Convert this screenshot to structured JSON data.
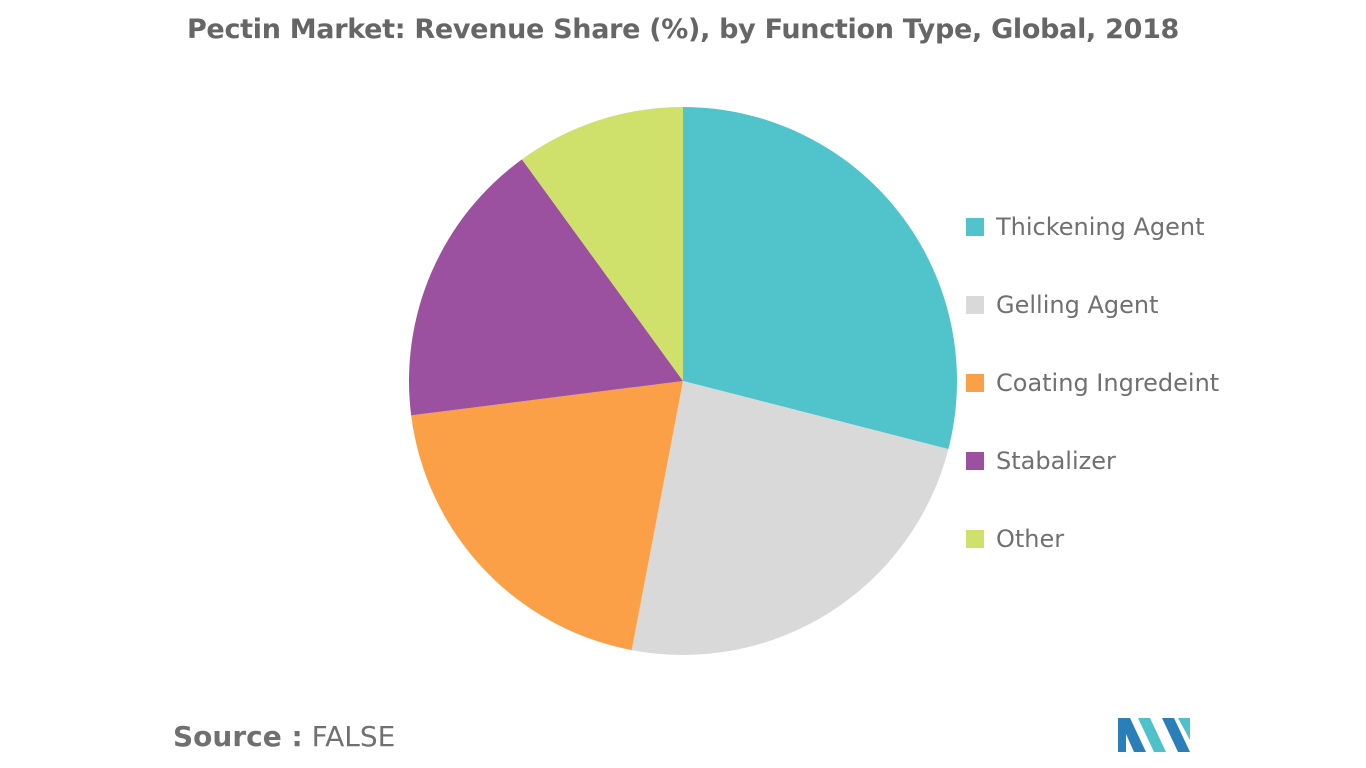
{
  "chart_data": {
    "type": "pie",
    "title": "Pectin Market: Revenue Share (%), by Function Type, Global, 2018",
    "categories": [
      "Thickening Agent",
      "Gelling Agent",
      "Coating Ingredeint",
      "Stabalizer",
      "Other"
    ],
    "values": [
      29,
      24,
      20,
      17,
      10
    ],
    "colors": [
      "#50C4CA",
      "#D9D9D9",
      "#FBA046",
      "#9B519F",
      "#CFE06B"
    ],
    "legend_position": "right"
  },
  "source": {
    "label": "Source :",
    "value": "FALSE"
  },
  "logo": {
    "colors": [
      "#2A7FB8",
      "#4FC1C8"
    ]
  }
}
